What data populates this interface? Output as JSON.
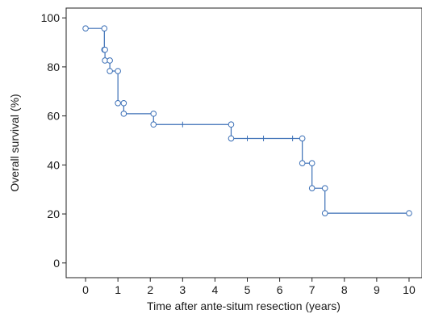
{
  "chart_data": {
    "type": "line",
    "step": true,
    "xlabel": "Time after ante-situm resection (years)",
    "ylabel": "Overall survival (%)",
    "xlim": [
      -0.6,
      10.4
    ],
    "ylim": [
      -6,
      104
    ],
    "x_ticks": [
      0,
      1,
      2,
      3,
      4,
      5,
      6,
      7,
      8,
      9,
      10
    ],
    "y_ticks": [
      0,
      20,
      40,
      60,
      80,
      100
    ],
    "grid": false,
    "line_color": "#3b6fb6",
    "series": [
      {
        "steps": [
          [
            0,
            95.7
          ],
          [
            0.58,
            95.7
          ],
          [
            0.58,
            87
          ],
          [
            0.6,
            87
          ],
          [
            0.6,
            82.6
          ],
          [
            0.75,
            82.6
          ],
          [
            0.75,
            78.3
          ],
          [
            1.0,
            78.3
          ],
          [
            1.0,
            65.2
          ],
          [
            1.18,
            65.2
          ],
          [
            1.18,
            60.9
          ],
          [
            2.1,
            60.9
          ],
          [
            2.1,
            56.5
          ],
          [
            4.5,
            56.5
          ],
          [
            4.5,
            50.8
          ],
          [
            6.7,
            50.8
          ],
          [
            6.7,
            40.7
          ],
          [
            7.0,
            40.7
          ],
          [
            7.0,
            30.5
          ],
          [
            7.4,
            30.5
          ],
          [
            7.4,
            20.3
          ],
          [
            10.0,
            20.3
          ]
        ],
        "events": [
          [
            0,
            95.7
          ],
          [
            0.58,
            95.7
          ],
          [
            0.58,
            87
          ],
          [
            0.6,
            87
          ],
          [
            0.6,
            82.6
          ],
          [
            0.75,
            82.6
          ],
          [
            0.75,
            78.3
          ],
          [
            1.0,
            78.3
          ],
          [
            1.0,
            65.2
          ],
          [
            1.18,
            65.2
          ],
          [
            1.18,
            60.9
          ],
          [
            2.1,
            60.9
          ],
          [
            2.1,
            56.5
          ],
          [
            4.5,
            56.5
          ],
          [
            4.5,
            50.8
          ],
          [
            6.7,
            50.8
          ],
          [
            6.7,
            40.7
          ],
          [
            7.0,
            40.7
          ],
          [
            7.0,
            30.5
          ],
          [
            7.4,
            30.5
          ],
          [
            7.4,
            20.3
          ],
          [
            10.0,
            20.3
          ]
        ],
        "censored": [
          [
            3.0,
            56.5
          ],
          [
            5.0,
            50.8
          ],
          [
            5.5,
            50.8
          ],
          [
            6.4,
            50.8
          ]
        ]
      }
    ]
  }
}
